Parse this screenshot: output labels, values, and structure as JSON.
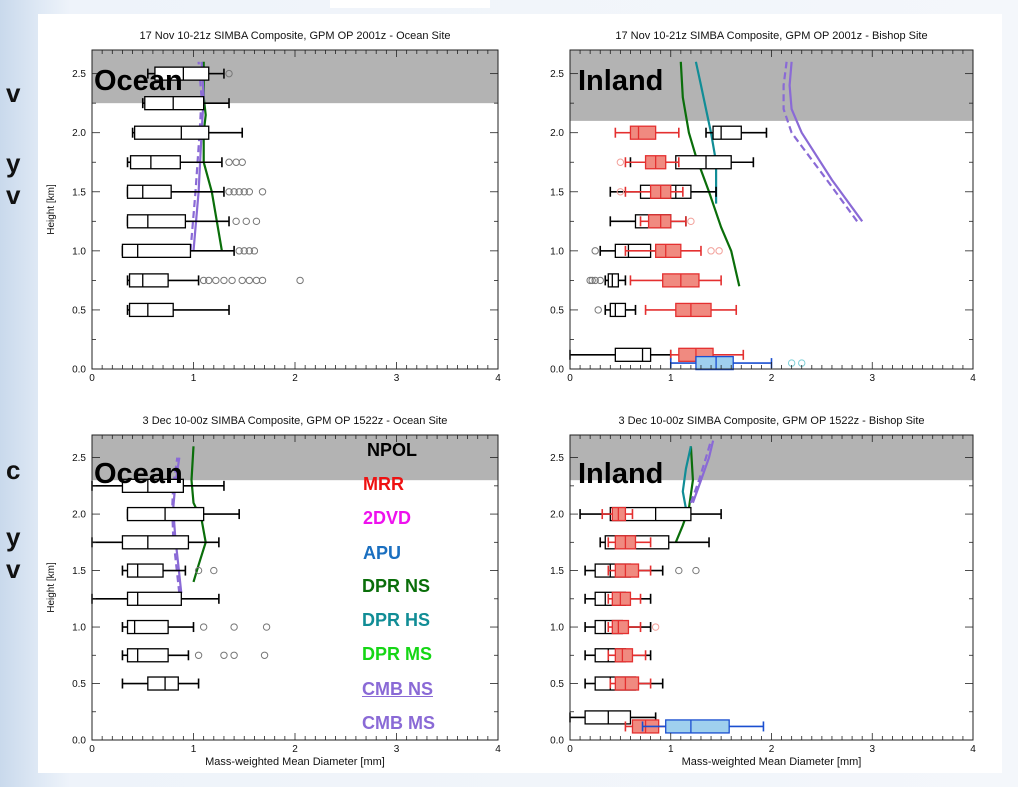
{
  "side_fragments": [
    "v",
    "y",
    "v",
    "c",
    "y",
    "v"
  ],
  "legend": {
    "items": [
      {
        "label": "NPOL",
        "color": "#000000",
        "underline": false
      },
      {
        "label": "MRR",
        "color": "#ee1111",
        "underline": false
      },
      {
        "label": "2DVD",
        "color": "#ee11ee",
        "underline": false
      },
      {
        "label": "APU",
        "color": "#1a6fc0",
        "underline": false
      },
      {
        "label": "DPR NS",
        "color": "#0a6e0a",
        "underline": false
      },
      {
        "label": "DPR HS",
        "color": "#118d96",
        "underline": false
      },
      {
        "label": "DPR MS",
        "color": "#15d615",
        "underline": false
      },
      {
        "label": "CMB NS",
        "color": "#8a6ad6",
        "underline": true
      },
      {
        "label": "CMB MS",
        "color": "#8a6ad6",
        "underline": false
      }
    ]
  },
  "colors": {
    "npol": "#000000",
    "mrr": "#e43030",
    "mrr_fill": "#f08a80",
    "apu": "#1a4fd0",
    "apu_fill": "#9fd0ee",
    "dpr_ns": "#0a6e0a",
    "dpr_hs": "#118d96",
    "cmb": "#8a6ad6",
    "shade": "#b3b3b3",
    "outlier_mrr": "#f2a09a",
    "outlier": "#777777"
  },
  "chart_data": [
    {
      "type": "box",
      "title": "17 Nov 10-21z SIMBA Composite, GPM OP 2001z - Ocean Site",
      "region_label": "Ocean",
      "xlabel": "",
      "ylabel": "Height [km]",
      "xlim": [
        0,
        4
      ],
      "ylim": [
        0,
        2.7
      ],
      "xticks": [
        "0",
        "1",
        "2",
        "3",
        "4"
      ],
      "yticks": [
        "0.0",
        "0.5",
        "1.0",
        "1.5",
        "2.0",
        "2.5"
      ],
      "shade_from": 2.25,
      "boxes": [
        {
          "y": 0.5,
          "color": "npol",
          "min": 0.35,
          "q1": 0.37,
          "med": 0.55,
          "q3": 0.8,
          "max": 1.35,
          "outliers": []
        },
        {
          "y": 0.75,
          "color": "npol",
          "min": 0.35,
          "q1": 0.37,
          "med": 0.5,
          "q3": 0.75,
          "max": 1.05,
          "outliers": [
            1.1,
            1.15,
            1.22,
            1.3,
            1.38,
            1.48,
            1.55,
            1.62,
            1.68,
            2.05
          ]
        },
        {
          "y": 1.0,
          "color": "npol",
          "min": 0.3,
          "q1": 0.3,
          "med": 0.45,
          "q3": 0.97,
          "max": 1.4,
          "outliers": [
            1.45,
            1.5,
            1.55,
            1.6
          ]
        },
        {
          "y": 1.25,
          "color": "npol",
          "min": 0.35,
          "q1": 0.35,
          "med": 0.55,
          "q3": 0.92,
          "max": 1.35,
          "outliers": [
            1.42,
            1.52,
            1.62
          ]
        },
        {
          "y": 1.5,
          "color": "npol",
          "min": 0.35,
          "q1": 0.35,
          "med": 0.5,
          "q3": 0.78,
          "max": 1.3,
          "outliers": [
            1.35,
            1.4,
            1.45,
            1.5,
            1.55,
            1.68
          ]
        },
        {
          "y": 1.75,
          "color": "npol",
          "min": 0.35,
          "q1": 0.38,
          "med": 0.58,
          "q3": 0.87,
          "max": 1.28,
          "outliers": [
            1.35,
            1.42,
            1.48
          ]
        },
        {
          "y": 2.0,
          "color": "npol",
          "min": 0.4,
          "q1": 0.42,
          "med": 0.88,
          "q3": 1.15,
          "max": 1.48,
          "outliers": []
        },
        {
          "y": 2.25,
          "color": "npol",
          "min": 0.5,
          "q1": 0.52,
          "med": 0.8,
          "q3": 1.1,
          "max": 1.35,
          "outliers": []
        },
        {
          "y": 2.5,
          "color": "npol",
          "min": 0.55,
          "q1": 0.62,
          "med": 0.9,
          "q3": 1.15,
          "max": 1.3,
          "outliers": [
            1.35
          ]
        }
      ],
      "lines": [
        {
          "color": "dpr_ns",
          "dash": false,
          "x": [
            1.28,
            1.18,
            1.1,
            1.1,
            1.12,
            1.1,
            1.1
          ],
          "y": [
            1.0,
            1.5,
            1.75,
            2.0,
            2.15,
            2.3,
            2.6
          ]
        },
        {
          "color": "cmb",
          "dash": false,
          "x": [
            1.0,
            1.05,
            1.08,
            1.1,
            1.08
          ],
          "y": [
            1.0,
            1.5,
            2.0,
            2.3,
            2.6
          ]
        },
        {
          "color": "cmb",
          "dash": true,
          "x": [
            0.97,
            1.02,
            1.06,
            1.08,
            1.05
          ],
          "y": [
            1.0,
            1.5,
            2.0,
            2.3,
            2.6
          ]
        }
      ]
    },
    {
      "type": "box",
      "title": "17 Nov 10-21z SIMBA Composite, GPM OP 2001z - Bishop Site",
      "region_label": "Inland",
      "xlabel": "",
      "ylabel": "",
      "xlim": [
        0,
        4
      ],
      "ylim": [
        0,
        2.7
      ],
      "xticks": [
        "0",
        "1",
        "2",
        "3",
        "4"
      ],
      "yticks": [
        "0.0",
        "0.5",
        "1.0",
        "1.5",
        "2.0",
        "2.5"
      ],
      "shade_from": 2.1,
      "boxes": [
        {
          "y": 0.12,
          "color": "npol",
          "min": 0.0,
          "q1": 0.45,
          "med": 0.72,
          "q3": 0.8,
          "max": 1.0,
          "outliers": []
        },
        {
          "y": 0.5,
          "color": "npol",
          "min": 0.35,
          "q1": 0.4,
          "med": 0.45,
          "q3": 0.55,
          "max": 0.65,
          "outliers": [
            0.28
          ]
        },
        {
          "y": 0.75,
          "color": "npol",
          "min": 0.35,
          "q1": 0.38,
          "med": 0.42,
          "q3": 0.48,
          "max": 0.55,
          "outliers": [
            0.2,
            0.22,
            0.25,
            0.3
          ]
        },
        {
          "y": 1.0,
          "color": "npol",
          "min": 0.3,
          "q1": 0.45,
          "med": 0.58,
          "q3": 0.8,
          "max": 0.95,
          "outliers": [
            0.25
          ]
        },
        {
          "y": 1.25,
          "color": "npol",
          "min": 0.4,
          "q1": 0.65,
          "med": 0.8,
          "q3": 1.0,
          "max": 1.15,
          "outliers": []
        },
        {
          "y": 1.5,
          "color": "npol",
          "min": 0.4,
          "q1": 0.7,
          "med": 1.05,
          "q3": 1.2,
          "max": 1.45,
          "outliers": []
        },
        {
          "y": 1.75,
          "color": "npol",
          "min": 0.6,
          "q1": 1.05,
          "med": 1.35,
          "q3": 1.6,
          "max": 1.82,
          "outliers": []
        },
        {
          "y": 2.0,
          "color": "npol",
          "min": 1.35,
          "q1": 1.42,
          "med": 1.5,
          "q3": 1.7,
          "max": 1.95,
          "outliers": []
        },
        {
          "y": 0.12,
          "color": "mrr",
          "min": 1.0,
          "q1": 1.08,
          "med": 1.25,
          "q3": 1.42,
          "max": 1.72,
          "outliers": []
        },
        {
          "y": 0.5,
          "color": "mrr",
          "min": 0.75,
          "q1": 1.05,
          "med": 1.2,
          "q3": 1.4,
          "max": 1.65,
          "outliers": []
        },
        {
          "y": 0.75,
          "color": "mrr",
          "min": 0.6,
          "q1": 0.92,
          "med": 1.1,
          "q3": 1.28,
          "max": 1.5,
          "outliers": []
        },
        {
          "y": 1.0,
          "color": "mrr",
          "min": 0.55,
          "q1": 0.85,
          "med": 0.95,
          "q3": 1.1,
          "max": 1.3,
          "outliers": [
            1.4,
            1.48
          ]
        },
        {
          "y": 1.25,
          "color": "mrr",
          "min": 0.7,
          "q1": 0.78,
          "med": 0.9,
          "q3": 1.0,
          "max": 1.15,
          "outliers": [
            1.2
          ]
        },
        {
          "y": 1.5,
          "color": "mrr",
          "min": 0.55,
          "q1": 0.8,
          "med": 0.9,
          "q3": 1.0,
          "max": 1.12,
          "outliers": [
            0.5
          ]
        },
        {
          "y": 1.75,
          "color": "mrr",
          "min": 0.55,
          "q1": 0.75,
          "med": 0.85,
          "q3": 0.95,
          "max": 1.08,
          "outliers": [
            0.5
          ]
        },
        {
          "y": 2.0,
          "color": "mrr",
          "min": 0.45,
          "q1": 0.6,
          "med": 0.68,
          "q3": 0.85,
          "max": 1.08,
          "outliers": []
        },
        {
          "y": 0.05,
          "color": "apu",
          "min": 1.0,
          "q1": 1.25,
          "med": 1.45,
          "q3": 1.62,
          "max": 2.0,
          "outliers": [
            2.2,
            2.3
          ]
        }
      ],
      "lines": [
        {
          "color": "dpr_ns",
          "dash": false,
          "x": [
            1.68,
            1.6,
            1.5,
            1.38,
            1.25,
            1.18,
            1.12,
            1.1
          ],
          "y": [
            0.7,
            1.0,
            1.2,
            1.5,
            1.8,
            2.0,
            2.3,
            2.6
          ]
        },
        {
          "color": "dpr_hs",
          "dash": false,
          "x": [
            1.45,
            1.45,
            1.4,
            1.35,
            1.3,
            1.25
          ],
          "y": [
            1.4,
            1.75,
            2.0,
            2.2,
            2.4,
            2.6
          ]
        },
        {
          "color": "cmb",
          "dash": false,
          "x": [
            2.9,
            2.6,
            2.3,
            2.2,
            2.18,
            2.2
          ],
          "y": [
            1.25,
            1.6,
            2.0,
            2.2,
            2.4,
            2.6
          ]
        },
        {
          "color": "cmb",
          "dash": true,
          "x": [
            2.85,
            2.55,
            2.2,
            2.12,
            2.12,
            2.15
          ],
          "y": [
            1.25,
            1.6,
            2.0,
            2.2,
            2.4,
            2.6
          ]
        }
      ]
    },
    {
      "type": "box",
      "title": "3 Dec 10-00z SIMBA Composite, GPM OP 1522z - Ocean Site",
      "region_label": "Ocean",
      "xlabel": "Mass-weighted Mean Diameter [mm]",
      "ylabel": "Height [km]",
      "xlim": [
        0,
        4
      ],
      "ylim": [
        0,
        2.7
      ],
      "xticks": [
        "0",
        "1",
        "2",
        "3",
        "4"
      ],
      "yticks": [
        "0.0",
        "0.5",
        "1.0",
        "1.5",
        "2.0",
        "2.5"
      ],
      "shade_from": 2.3,
      "boxes": [
        {
          "y": 0.5,
          "color": "npol",
          "min": 0.3,
          "q1": 0.55,
          "med": 0.72,
          "q3": 0.85,
          "max": 1.05,
          "outliers": []
        },
        {
          "y": 0.75,
          "color": "npol",
          "min": 0.3,
          "q1": 0.35,
          "med": 0.45,
          "q3": 0.75,
          "max": 0.95,
          "outliers": [
            1.05,
            1.3,
            1.4,
            1.7
          ]
        },
        {
          "y": 1.0,
          "color": "npol",
          "min": 0.3,
          "q1": 0.35,
          "med": 0.42,
          "q3": 0.75,
          "max": 1.0,
          "outliers": [
            1.1,
            1.4,
            1.72
          ]
        },
        {
          "y": 1.25,
          "color": "npol",
          "min": 0.0,
          "q1": 0.35,
          "med": 0.45,
          "q3": 0.88,
          "max": 1.25,
          "outliers": []
        },
        {
          "y": 1.5,
          "color": "npol",
          "min": 0.3,
          "q1": 0.35,
          "med": 0.45,
          "q3": 0.7,
          "max": 0.92,
          "outliers": [
            1.05,
            1.2
          ]
        },
        {
          "y": 1.75,
          "color": "npol",
          "min": 0.0,
          "q1": 0.3,
          "med": 0.55,
          "q3": 0.95,
          "max": 1.25,
          "outliers": []
        },
        {
          "y": 2.0,
          "color": "npol",
          "min": 0.35,
          "q1": 0.35,
          "med": 0.72,
          "q3": 1.1,
          "max": 1.45,
          "outliers": []
        },
        {
          "y": 2.25,
          "color": "npol",
          "min": 0.0,
          "q1": 0.3,
          "med": 0.55,
          "q3": 0.9,
          "max": 1.3,
          "outliers": []
        }
      ],
      "lines": [
        {
          "color": "dpr_ns",
          "dash": false,
          "x": [
            1.0,
            1.05,
            1.12,
            1.08,
            1.0,
            0.98,
            1.0
          ],
          "y": [
            1.4,
            1.55,
            1.75,
            1.95,
            2.1,
            2.3,
            2.6
          ]
        },
        {
          "color": "cmb",
          "dash": false,
          "x": [
            0.88,
            0.85,
            0.82,
            0.8,
            0.82,
            0.86
          ],
          "y": [
            1.3,
            1.55,
            1.8,
            2.05,
            2.25,
            2.5
          ]
        },
        {
          "color": "cmb",
          "dash": true,
          "x": [
            0.86,
            0.83,
            0.8,
            0.79,
            0.8,
            0.84
          ],
          "y": [
            1.3,
            1.55,
            1.8,
            2.05,
            2.25,
            2.5
          ]
        }
      ]
    },
    {
      "type": "box",
      "title": "3 Dec 10-00z SIMBA Composite, GPM OP 1522z - Bishop Site",
      "region_label": "Inland",
      "xlabel": "Mass-weighted Mean Diameter [mm]",
      "ylabel": "",
      "xlim": [
        0,
        4
      ],
      "ylim": [
        0,
        2.7
      ],
      "xticks": [
        "0",
        "1",
        "2",
        "3",
        "4"
      ],
      "yticks": [
        "0.0",
        "0.5",
        "1.0",
        "1.5",
        "2.0",
        "2.5"
      ],
      "shade_from": 2.3,
      "boxes": [
        {
          "y": 0.2,
          "color": "npol",
          "min": 0.0,
          "q1": 0.15,
          "med": 0.38,
          "q3": 0.6,
          "max": 0.85,
          "outliers": []
        },
        {
          "y": 0.5,
          "color": "npol",
          "min": 0.15,
          "q1": 0.25,
          "med": 0.4,
          "q3": 0.65,
          "max": 0.92,
          "outliers": []
        },
        {
          "y": 0.75,
          "color": "npol",
          "min": 0.15,
          "q1": 0.25,
          "med": 0.38,
          "q3": 0.55,
          "max": 0.8,
          "outliers": []
        },
        {
          "y": 1.0,
          "color": "npol",
          "min": 0.15,
          "q1": 0.25,
          "med": 0.35,
          "q3": 0.52,
          "max": 0.8,
          "outliers": []
        },
        {
          "y": 1.25,
          "color": "npol",
          "min": 0.15,
          "q1": 0.25,
          "med": 0.35,
          "q3": 0.55,
          "max": 0.8,
          "outliers": []
        },
        {
          "y": 1.5,
          "color": "npol",
          "min": 0.15,
          "q1": 0.25,
          "med": 0.4,
          "q3": 0.6,
          "max": 0.92,
          "outliers": [
            1.08,
            1.25
          ]
        },
        {
          "y": 1.75,
          "color": "npol",
          "min": 0.3,
          "q1": 0.35,
          "med": 0.55,
          "q3": 0.98,
          "max": 1.38,
          "outliers": []
        },
        {
          "y": 2.0,
          "color": "npol",
          "min": 0.1,
          "q1": 0.4,
          "med": 0.85,
          "q3": 1.2,
          "max": 1.5,
          "outliers": []
        },
        {
          "y": 0.12,
          "color": "mrr",
          "min": 0.55,
          "q1": 0.62,
          "med": 0.75,
          "q3": 0.88,
          "max": 1.02,
          "outliers": [
            1.05
          ]
        },
        {
          "y": 0.5,
          "color": "mrr",
          "min": 0.4,
          "q1": 0.45,
          "med": 0.55,
          "q3": 0.68,
          "max": 0.8,
          "outliers": []
        },
        {
          "y": 0.75,
          "color": "mrr",
          "min": 0.38,
          "q1": 0.45,
          "med": 0.52,
          "q3": 0.62,
          "max": 0.75,
          "outliers": []
        },
        {
          "y": 1.0,
          "color": "mrr",
          "min": 0.38,
          "q1": 0.42,
          "med": 0.48,
          "q3": 0.58,
          "max": 0.7,
          "outliers": [
            0.85
          ]
        },
        {
          "y": 1.25,
          "color": "mrr",
          "min": 0.38,
          "q1": 0.42,
          "med": 0.5,
          "q3": 0.6,
          "max": 0.7,
          "outliers": []
        },
        {
          "y": 1.5,
          "color": "mrr",
          "min": 0.38,
          "q1": 0.45,
          "med": 0.55,
          "q3": 0.68,
          "max": 0.8,
          "outliers": []
        },
        {
          "y": 1.75,
          "color": "mrr",
          "min": 0.38,
          "q1": 0.45,
          "med": 0.55,
          "q3": 0.65,
          "max": 0.8,
          "outliers": []
        },
        {
          "y": 2.0,
          "color": "mrr",
          "min": 0.32,
          "q1": 0.42,
          "med": 0.48,
          "q3": 0.55,
          "max": 0.62,
          "outliers": []
        },
        {
          "y": 0.12,
          "color": "apu",
          "min": 0.72,
          "q1": 0.95,
          "med": 1.2,
          "q3": 1.58,
          "max": 1.92,
          "outliers": []
        }
      ],
      "lines": [
        {
          "color": "dpr_ns",
          "dash": false,
          "x": [
            1.05,
            1.12,
            1.18,
            1.22,
            1.2
          ],
          "y": [
            1.75,
            1.9,
            2.05,
            2.3,
            2.6
          ]
        },
        {
          "color": "dpr_hs",
          "dash": false,
          "x": [
            1.15,
            1.12,
            1.15,
            1.2
          ],
          "y": [
            2.05,
            2.2,
            2.4,
            2.6
          ]
        },
        {
          "color": "cmb",
          "dash": false,
          "x": [
            1.22,
            1.3,
            1.38,
            1.42
          ],
          "y": [
            2.1,
            2.3,
            2.5,
            2.65
          ]
        },
        {
          "color": "cmb",
          "dash": true,
          "x": [
            1.2,
            1.28,
            1.35,
            1.4
          ],
          "y": [
            2.1,
            2.3,
            2.5,
            2.65
          ]
        }
      ]
    }
  ]
}
